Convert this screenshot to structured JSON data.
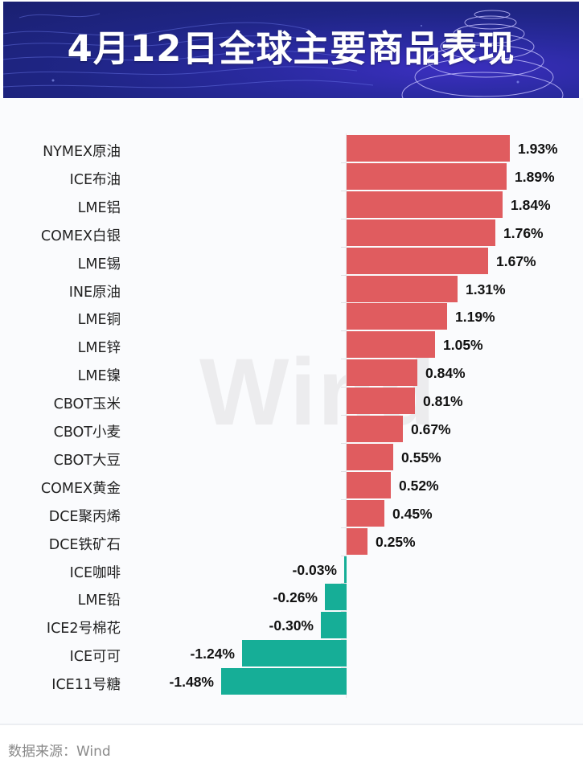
{
  "header": {
    "title": "4月12日全球主要商品表现"
  },
  "watermark": "Wind",
  "footer": {
    "source": "数据来源：Wind"
  },
  "colors": {
    "positive": "#e05c5f",
    "negative": "#16ae97",
    "header_bg": "#1f2585"
  },
  "chart_data": {
    "type": "bar",
    "orientation": "horizontal",
    "title": "4月12日全球主要商品表现",
    "xlabel": "",
    "ylabel": "",
    "unit": "%",
    "grid": false,
    "legend": null,
    "categories": [
      "NYMEX原油",
      "ICE布油",
      "LME铝",
      "COMEX白银",
      "LME锡",
      "INE原油",
      "LME铜",
      "LME锌",
      "LME镍",
      "CBOT玉米",
      "CBOT小麦",
      "CBOT大豆",
      "COMEX黄金",
      "DCE聚丙烯",
      "DCE铁矿石",
      "ICE咖啡",
      "LME铅",
      "ICE2号棉花",
      "ICE可可",
      "ICE11号糖"
    ],
    "values": [
      1.93,
      1.89,
      1.84,
      1.76,
      1.67,
      1.31,
      1.19,
      1.05,
      0.84,
      0.81,
      0.67,
      0.55,
      0.52,
      0.45,
      0.25,
      -0.03,
      -0.26,
      -0.3,
      -1.24,
      -1.48
    ],
    "value_labels": [
      "1.93%",
      "1.89%",
      "1.84%",
      "1.76%",
      "1.67%",
      "1.31%",
      "1.19%",
      "1.05%",
      "0.84%",
      "0.81%",
      "0.67%",
      "0.55%",
      "0.52%",
      "0.45%",
      "0.25%",
      "-0.03%",
      "-0.26%",
      "-0.30%",
      "-1.24%",
      "-1.48%"
    ],
    "xlim": [
      -1.5,
      2.0
    ]
  }
}
